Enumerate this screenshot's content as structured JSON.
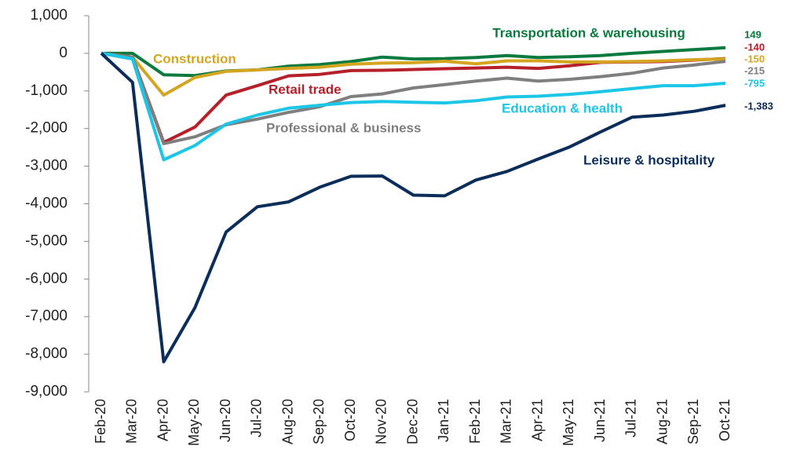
{
  "chart_data": {
    "type": "line",
    "categories": [
      "Feb-20",
      "Mar-20",
      "Apr-20",
      "May-20",
      "Jun-20",
      "Jul-20",
      "Aug-20",
      "Sep-20",
      "Oct-20",
      "Nov-20",
      "Dec-20",
      "Jan-21",
      "Feb-21",
      "Mar-21",
      "Apr-21",
      "May-21",
      "Jun-21",
      "Jul-21",
      "Aug-21",
      "Sep-21",
      "Oct-21"
    ],
    "ylim": [
      -9000,
      1000
    ],
    "yticks": [
      {
        "value": 1000,
        "label": "1,000"
      },
      0,
      {
        "value": -1000,
        "label": "-1,000"
      },
      {
        "value": -2000,
        "label": "-2,000"
      },
      {
        "value": -3000,
        "label": "-3,000"
      },
      {
        "value": -4000,
        "label": "-4,000"
      },
      {
        "value": -5000,
        "label": "-5,000"
      },
      {
        "value": -6000,
        "label": "-6,000"
      },
      {
        "value": -7000,
        "label": "-7,000"
      },
      {
        "value": -8000,
        "label": "-8,000"
      },
      {
        "value": -9000,
        "label": "-9,000"
      }
    ],
    "grid": false,
    "series": [
      {
        "name": "Transportation & warehousing",
        "color": "#0b7a3e",
        "values": [
          0,
          0,
          -570,
          -590,
          -470,
          -440,
          -340,
          -300,
          -220,
          -100,
          -150,
          -140,
          -110,
          -60,
          -110,
          -90,
          -60,
          0,
          50,
          100,
          149
        ],
        "value_labels": [
          null,
          null,
          null,
          null,
          null,
          null,
          null,
          null,
          null,
          null,
          null,
          null,
          null,
          null,
          null,
          null,
          null,
          null,
          null,
          null,
          "149"
        ]
      },
      {
        "name": "Retail trade",
        "color": "#b5202a",
        "values": [
          0,
          -100,
          -2370,
          -1960,
          -1110,
          -860,
          -600,
          -560,
          -460,
          -450,
          -430,
          -410,
          -390,
          -370,
          -400,
          -330,
          -240,
          -230,
          -220,
          -180,
          -140
        ],
        "value_labels": [
          null,
          null,
          null,
          null,
          null,
          null,
          null,
          null,
          null,
          null,
          null,
          null,
          null,
          null,
          null,
          null,
          null,
          null,
          null,
          null,
          "-140"
        ]
      },
      {
        "name": "Construction",
        "color": "#d4a520",
        "values": [
          0,
          -100,
          -1110,
          -640,
          -480,
          -440,
          -400,
          -370,
          -290,
          -260,
          -250,
          -210,
          -280,
          -200,
          -200,
          -230,
          -230,
          -220,
          -200,
          -170,
          -150
        ],
        "value_labels": [
          null,
          null,
          null,
          null,
          null,
          null,
          null,
          null,
          null,
          null,
          null,
          null,
          null,
          null,
          null,
          null,
          null,
          null,
          null,
          null,
          "-150"
        ]
      },
      {
        "name": "Professional & business",
        "color": "#7f7f7f",
        "values": [
          0,
          -100,
          -2400,
          -2220,
          -1900,
          -1750,
          -1570,
          -1420,
          -1150,
          -1080,
          -920,
          -830,
          -740,
          -660,
          -740,
          -690,
          -620,
          -530,
          -390,
          -310,
          -215
        ],
        "value_labels": [
          null,
          null,
          null,
          null,
          null,
          null,
          null,
          null,
          null,
          null,
          null,
          null,
          null,
          null,
          null,
          null,
          null,
          null,
          null,
          null,
          "-215"
        ]
      },
      {
        "name": "Education & health",
        "color": "#1cc6e6",
        "values": [
          0,
          -150,
          -2830,
          -2450,
          -1880,
          -1640,
          -1460,
          -1380,
          -1310,
          -1280,
          -1300,
          -1320,
          -1260,
          -1160,
          -1140,
          -1090,
          -1020,
          -940,
          -860,
          -860,
          -795
        ],
        "value_labels": [
          null,
          null,
          null,
          null,
          null,
          null,
          null,
          null,
          null,
          null,
          null,
          null,
          null,
          null,
          null,
          null,
          null,
          null,
          null,
          null,
          "-795"
        ]
      },
      {
        "name": "Leisure & hospitality",
        "color": "#0b2d5a",
        "values": [
          0,
          -770,
          -8200,
          -6760,
          -4750,
          -4080,
          -3950,
          -3560,
          -3270,
          -3260,
          -3770,
          -3790,
          -3370,
          -3140,
          -2810,
          -2490,
          -2090,
          -1700,
          -1640,
          -1540,
          -1383
        ],
        "value_labels": [
          null,
          null,
          null,
          null,
          null,
          null,
          null,
          null,
          null,
          null,
          null,
          null,
          null,
          null,
          null,
          null,
          null,
          null,
          null,
          null,
          "-1,383"
        ]
      }
    ]
  }
}
